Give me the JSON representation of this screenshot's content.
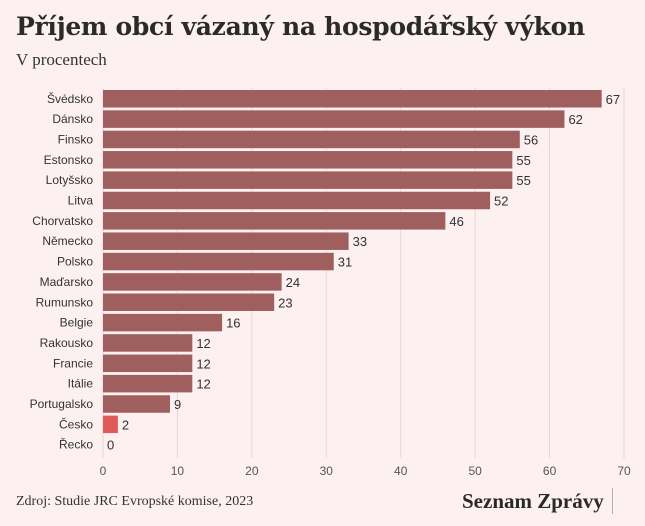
{
  "header": {
    "title": "Příjem obcí vázaný na hospodářský výkon",
    "subtitle": "V procentech"
  },
  "footer": {
    "source": "Zdroj: Studie JRC Evropské komise, 2023",
    "brand": "Seznam Zprávy"
  },
  "colors": {
    "bar": "#a05f5f",
    "highlight": "#e05a5a",
    "background": "#fdf0f0",
    "gridline": "#ecd3d3"
  },
  "chart_data": {
    "type": "bar",
    "orientation": "horizontal",
    "title": "Příjem obcí vázaný na hospodářský výkon",
    "subtitle": "V procentech",
    "categories": [
      "Švédsko",
      "Dánsko",
      "Finsko",
      "Estonsko",
      "Lotyšsko",
      "Litva",
      "Chorvatsko",
      "Německo",
      "Polsko",
      "Maďarsko",
      "Rumunsko",
      "Belgie",
      "Rakousko",
      "Francie",
      "Itálie",
      "Portugalsko",
      "Česko",
      "Řecko"
    ],
    "values": [
      67,
      62,
      56,
      55,
      55,
      52,
      46,
      33,
      31,
      24,
      23,
      16,
      12,
      12,
      12,
      9,
      2,
      0
    ],
    "highlight_category": "Česko",
    "xlim": [
      0,
      70
    ],
    "xticks": [
      0,
      10,
      20,
      30,
      40,
      50,
      60,
      70
    ],
    "grid": true,
    "data_labels": true
  }
}
